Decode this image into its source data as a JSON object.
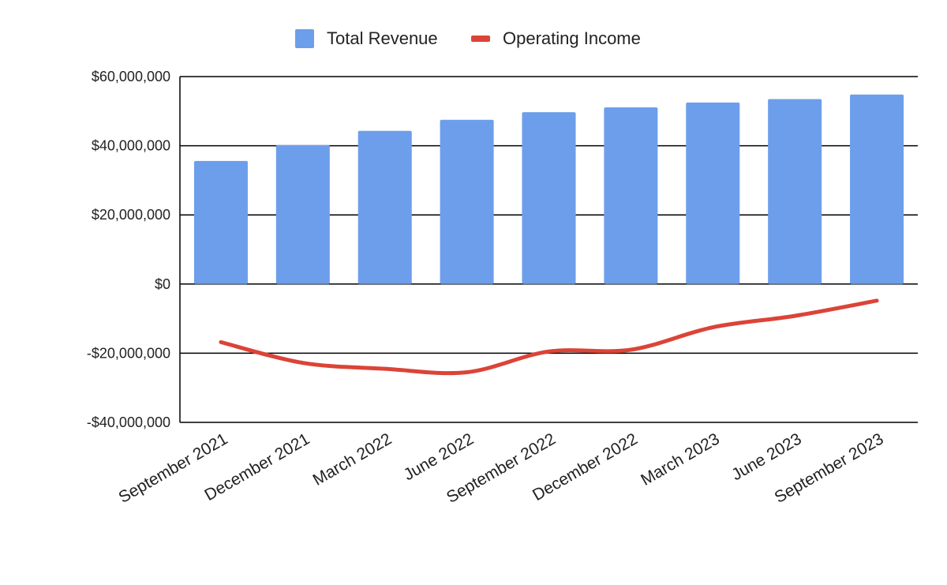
{
  "chart_data": {
    "type": "bar",
    "title": "",
    "xlabel": "",
    "ylabel": "",
    "categories": [
      "September 2021",
      "December 2021",
      "March 2022",
      "June 2022",
      "September 2022",
      "December 2022",
      "March 2023",
      "June 2023",
      "September 2023"
    ],
    "series": [
      {
        "name": "Total Revenue",
        "type": "bar",
        "color": "#6d9eeb",
        "values": [
          35600000,
          40200000,
          44300000,
          47500000,
          49700000,
          51100000,
          52500000,
          53500000,
          54800000
        ]
      },
      {
        "name": "Operating Income",
        "type": "line",
        "color": "#db4437",
        "values": [
          -16800000,
          -22800000,
          -24500000,
          -25500000,
          -19500000,
          -19000000,
          -12500000,
          -9200000,
          -4800000
        ]
      }
    ],
    "ylim": [
      -40000000,
      60000000
    ],
    "yticks": [
      60000000,
      40000000,
      20000000,
      0,
      -20000000,
      -40000000
    ],
    "ytick_labels": [
      "$60,000,000",
      "$40,000,000",
      "$20,000,000",
      "$0",
      "-$20,000,000",
      "-$40,000,000"
    ],
    "grid": true,
    "legend_position": "top"
  }
}
